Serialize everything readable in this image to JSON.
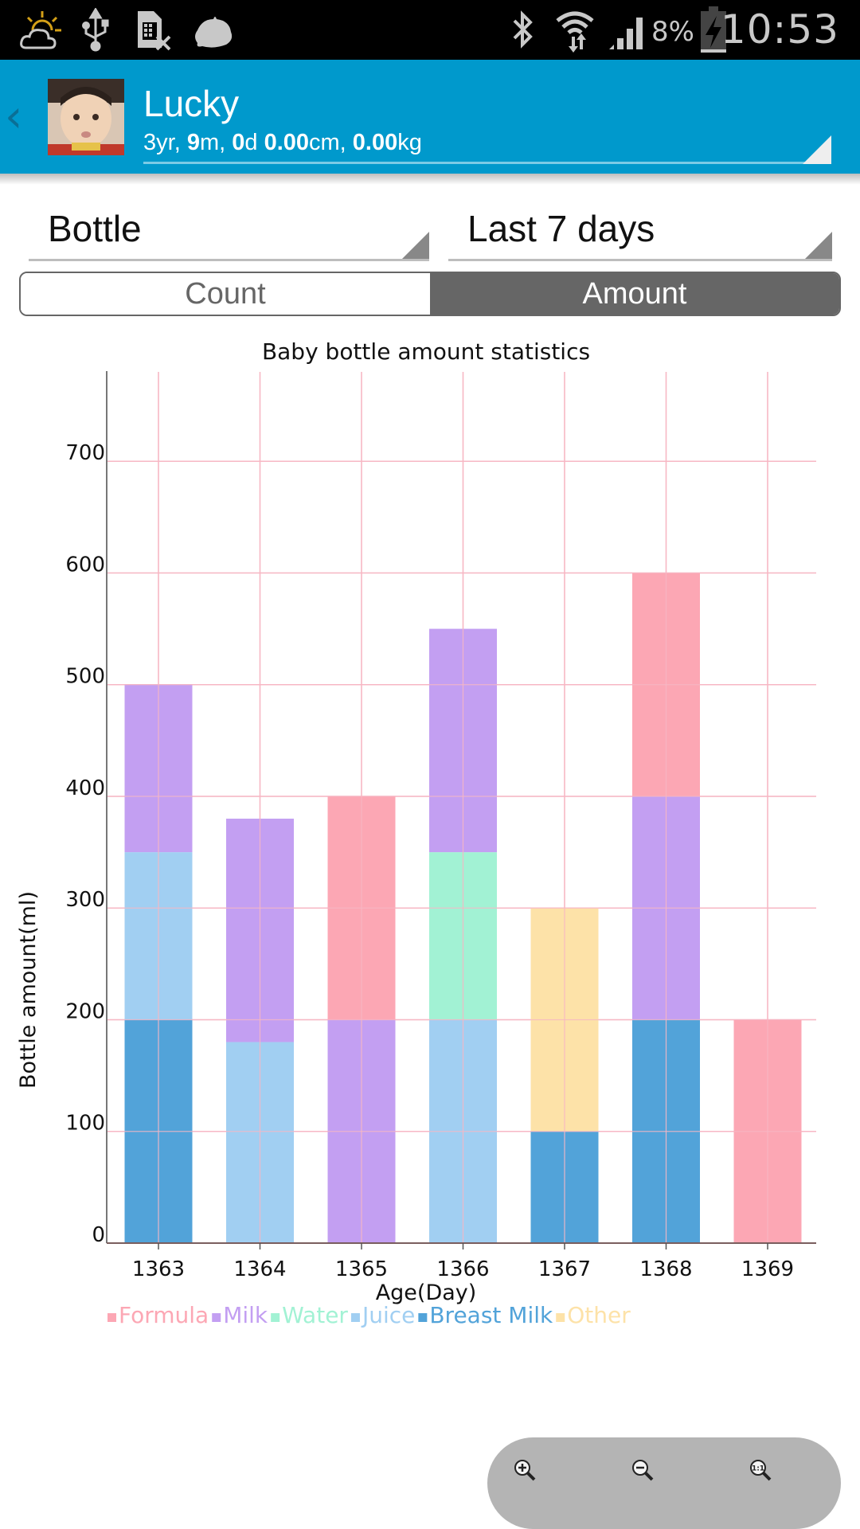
{
  "status_bar": {
    "time": "10:53",
    "battery_percent": "8%",
    "icons": [
      "weather-partly-cloudy-icon",
      "usb-icon",
      "no-sim-icon",
      "notification-blob-icon",
      "bluetooth-icon",
      "wifi-data-icon",
      "signal-icon",
      "battery-charging-icon"
    ]
  },
  "app_bar": {
    "back_icon": "chevron-left-icon",
    "profile_name": "Lucky",
    "profile_stats": {
      "years": "3",
      "years_unit": "yr, ",
      "months": "9",
      "months_unit": "m, ",
      "days": "0",
      "days_unit": "d ",
      "height": "0.00",
      "height_unit": "cm, ",
      "weight": "0.00",
      "weight_unit": "kg"
    }
  },
  "filters": {
    "type_selected": "Bottle",
    "range_selected": "Last 7 days"
  },
  "toggle": {
    "options": [
      "Count",
      "Amount"
    ],
    "selected": "Amount"
  },
  "chart_data": {
    "type": "bar",
    "stacked": true,
    "title": "Baby bottle amount statistics",
    "xlabel": "Age(Day)",
    "ylabel": "Bottle amount(ml)",
    "ylim": [
      0,
      780
    ],
    "yticks": [
      0,
      100,
      200,
      300,
      400,
      500,
      600,
      700
    ],
    "grid": true,
    "legend_position": "bottom-left",
    "categories": [
      "1363",
      "1364",
      "1365",
      "1366",
      "1367",
      "1368",
      "1369"
    ],
    "stack_order": [
      "Breast Milk",
      "Other",
      "Juice",
      "Water",
      "Milk",
      "Formula"
    ],
    "series": [
      {
        "name": "Formula",
        "color": "#fca7b4",
        "values": [
          0,
          0,
          200,
          0,
          0,
          200,
          200
        ]
      },
      {
        "name": "Milk",
        "color": "#c39ff2",
        "values": [
          150,
          200,
          200,
          200,
          0,
          200,
          0
        ]
      },
      {
        "name": "Water",
        "color": "#a2f2d4",
        "values": [
          0,
          0,
          0,
          150,
          0,
          0,
          0
        ]
      },
      {
        "name": "Juice",
        "color": "#a1cff2",
        "values": [
          150,
          180,
          0,
          200,
          0,
          0,
          0
        ]
      },
      {
        "name": "Breast Milk",
        "color": "#52a3d9",
        "values": [
          200,
          0,
          0,
          0,
          100,
          200,
          0
        ]
      },
      {
        "name": "Other",
        "color": "#fde2a8",
        "values": [
          0,
          0,
          0,
          0,
          200,
          0,
          0
        ]
      }
    ],
    "legend_order": [
      "Formula",
      "Milk",
      "Water",
      "Juice",
      "Breast Milk",
      "Other"
    ]
  },
  "zoom_controls": {
    "buttons": [
      {
        "name": "zoom-in",
        "icon": "zoom-in-icon"
      },
      {
        "name": "zoom-out",
        "icon": "zoom-out-icon"
      },
      {
        "name": "zoom-reset",
        "icon": "zoom-reset-icon",
        "label": "1:1"
      }
    ]
  }
}
